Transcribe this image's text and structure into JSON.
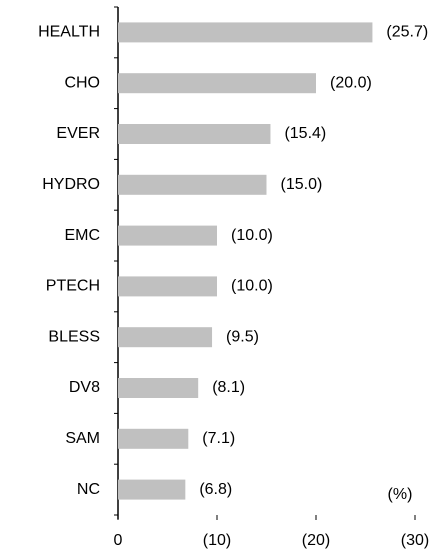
{
  "chart_data": {
    "type": "hbar",
    "categories": [
      "HEALTH",
      "CHO",
      "EVER",
      "HYDRO",
      "EMC",
      "PTECH",
      "BLESS",
      "DV8",
      "SAM",
      "NC"
    ],
    "values": [
      -25.7,
      -20.0,
      -15.4,
      -15.0,
      -10.0,
      -10.0,
      -9.5,
      -8.1,
      -7.1,
      -6.8
    ],
    "value_labels": [
      "(25.7)",
      "(20.0)",
      "(15.4)",
      "(15.0)",
      "(10.0)",
      "(10.0)",
      "(9.5)",
      "(8.1)",
      "(7.1)",
      "(6.8)"
    ],
    "color": "#c0c0c0",
    "xlim": [
      0,
      -30
    ],
    "xticks": [
      0,
      {
        "value": -10,
        "label": "(10)"
      },
      {
        "value": -20,
        "label": "(20)"
      },
      {
        "value": -30,
        "label": "(30)"
      }
    ],
    "annotation": "(%)"
  }
}
